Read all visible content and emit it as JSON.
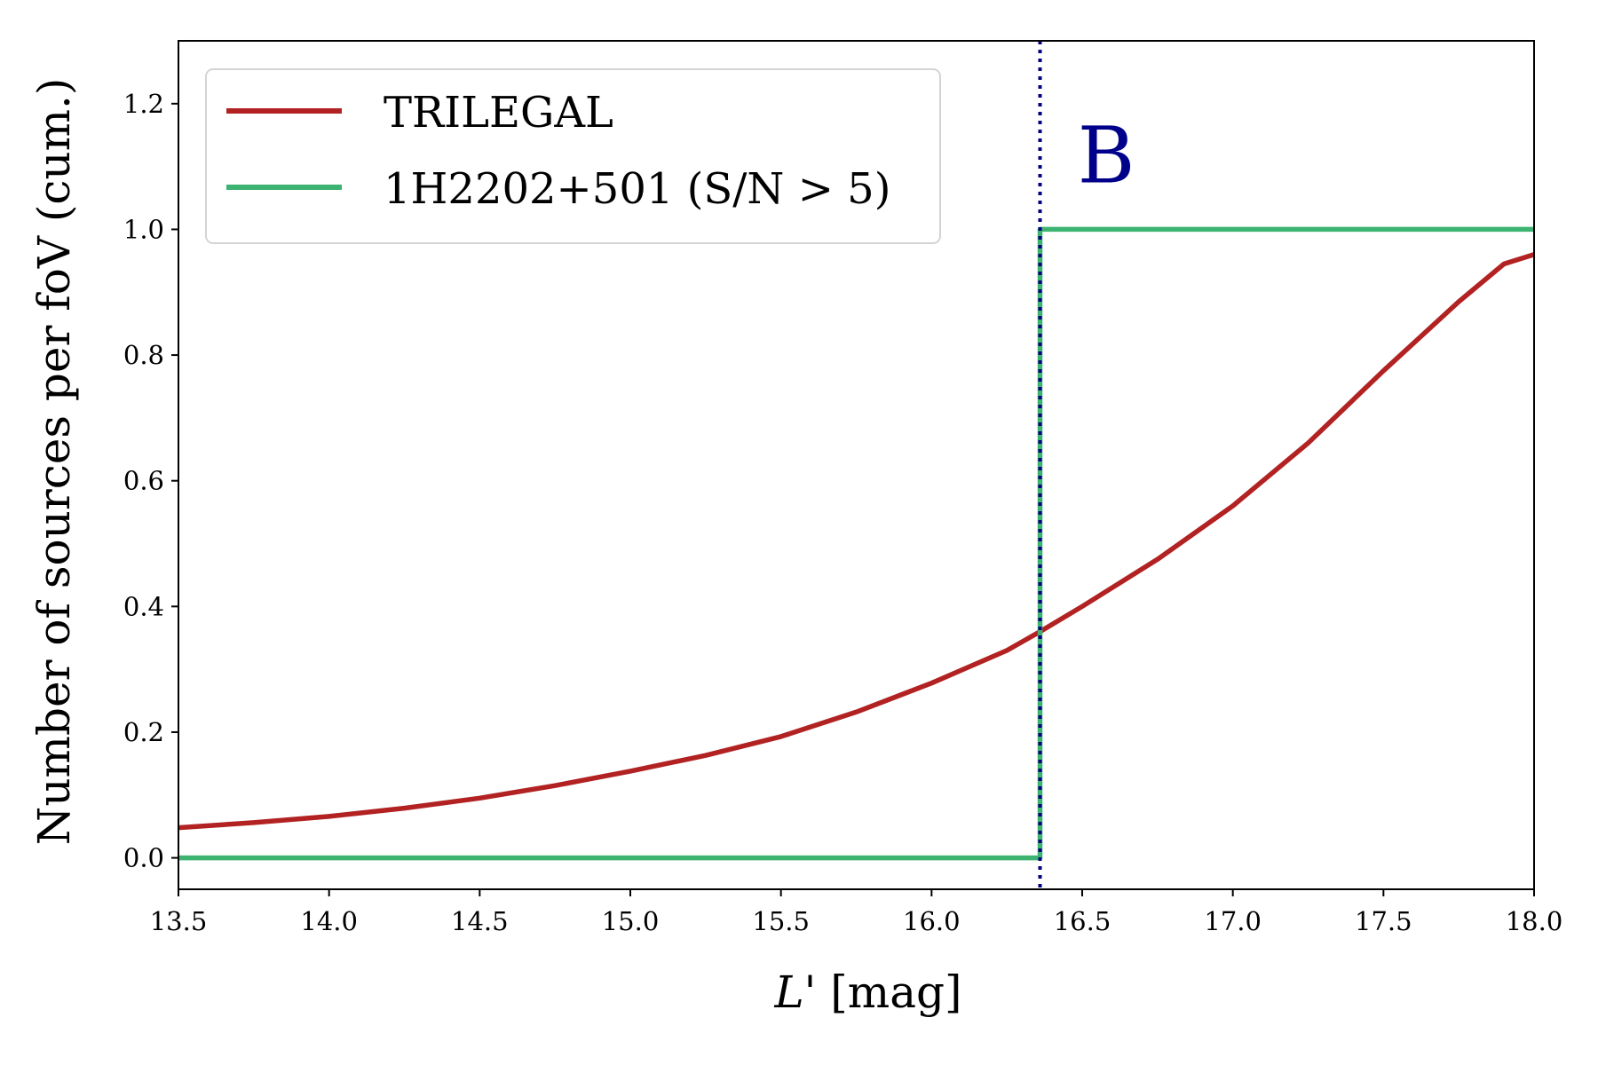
{
  "chart_data": {
    "type": "line",
    "xlabel_italic": "L'",
    "xlabel_rest": " [mag]",
    "ylabel": "Number of sources per foV (cum.)",
    "xlim": [
      13.5,
      18.0
    ],
    "ylim": [
      -0.05,
      1.3
    ],
    "xticks": [
      13.5,
      14.0,
      14.5,
      15.0,
      15.5,
      16.0,
      16.5,
      17.0,
      17.5,
      18.0
    ],
    "xtick_labels": [
      "13.5",
      "14.0",
      "14.5",
      "15.0",
      "15.5",
      "16.0",
      "16.5",
      "17.0",
      "17.5",
      "18.0"
    ],
    "yticks": [
      0.0,
      0.2,
      0.4,
      0.6,
      0.8,
      1.0,
      1.2
    ],
    "ytick_labels": [
      "0.0",
      "0.2",
      "0.4",
      "0.6",
      "0.8",
      "1.0",
      "1.2"
    ],
    "grid": false,
    "legend_position": "top-left",
    "series": [
      {
        "name": "TRILEGAL",
        "color": "#b22222",
        "x": [
          13.5,
          13.75,
          14.0,
          14.25,
          14.5,
          14.75,
          15.0,
          15.25,
          15.5,
          15.75,
          16.0,
          16.25,
          16.36,
          16.5,
          16.75,
          17.0,
          17.25,
          17.5,
          17.75,
          17.9,
          18.0
        ],
        "y": [
          0.048,
          0.056,
          0.066,
          0.079,
          0.095,
          0.115,
          0.138,
          0.163,
          0.193,
          0.232,
          0.278,
          0.33,
          0.36,
          0.4,
          0.475,
          0.56,
          0.66,
          0.775,
          0.885,
          0.945,
          0.96
        ]
      },
      {
        "name": "1H2202+501 (S/N > 5)",
        "color": "#3cb371",
        "step": true,
        "x": [
          13.5,
          16.36,
          16.36,
          18.0
        ],
        "y": [
          0.0,
          0.0,
          1.0,
          1.0
        ]
      }
    ],
    "vline": {
      "x": 16.36,
      "color": "#000080",
      "style": "dotted"
    },
    "annotation": {
      "text": "B",
      "x": 16.58,
      "y": 1.12,
      "color": "#00008b"
    }
  }
}
